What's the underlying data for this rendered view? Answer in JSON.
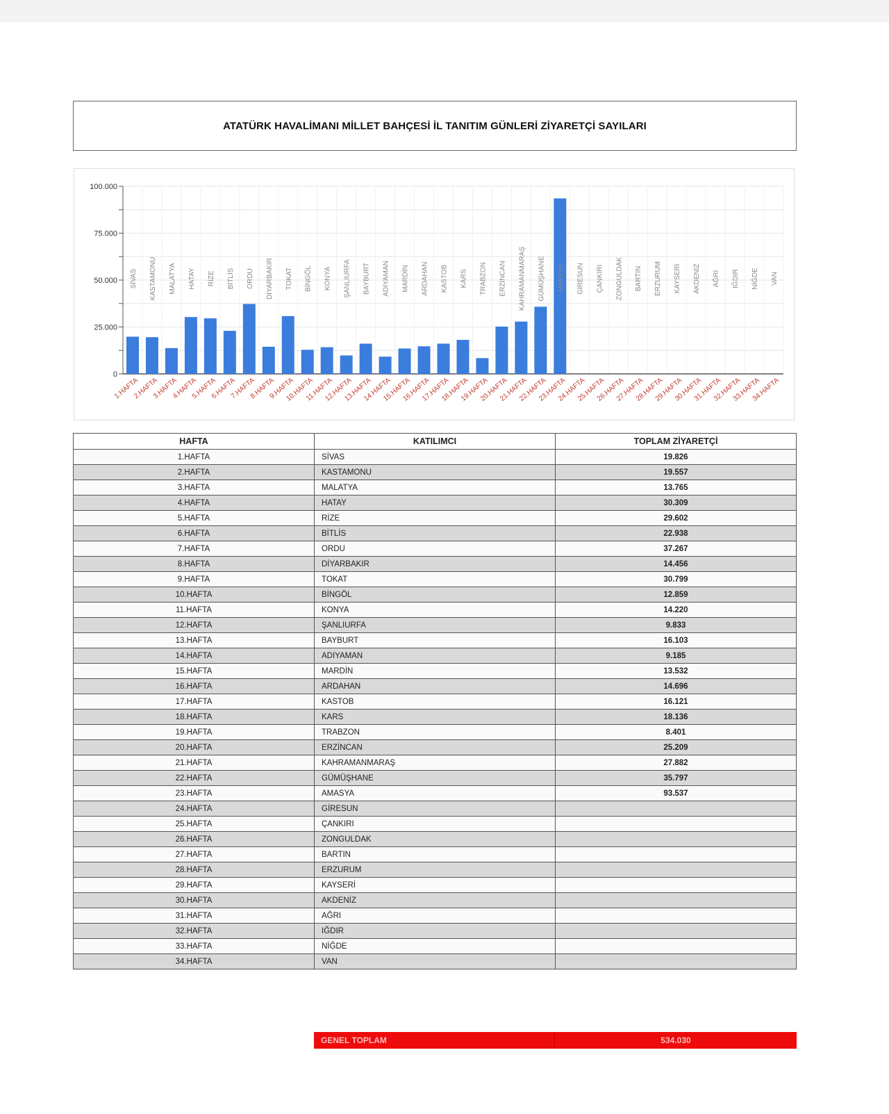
{
  "title": "ATATÜRK HAVALİMANI MİLLET BAHÇESİ İL TANITIM GÜNLERİ ZİYARETÇİ SAYILARI",
  "colors": {
    "bar": "#3b7ddd",
    "x_label": "#c0392b",
    "total_bg": "#ee0b0b"
  },
  "chart_data": {
    "type": "bar",
    "title": "",
    "xlabel": "",
    "ylabel": "",
    "ylim": [
      0,
      100000
    ],
    "yticks": [
      0,
      25000,
      50000,
      75000,
      100000
    ],
    "ytick_labels": [
      "0",
      "25.000",
      "50.000",
      "75.000",
      "100.000"
    ],
    "grid": true,
    "categories": [
      "1.HAFTA",
      "2.HAFTA",
      "3.HAFTA",
      "4.HAFTA",
      "5.HAFTA",
      "6.HAFTA",
      "7.HAFTA",
      "8.HAFTA",
      "9.HAFTA",
      "10.HAFTA",
      "11.HAFTA",
      "12.HAFTA",
      "13.HAFTA",
      "14.HAFTA",
      "15.HAFTA",
      "16.HAFTA",
      "17.HAFTA",
      "18.HAFTA",
      "19.HAFTA",
      "20.HAFTA",
      "21.HAFTA",
      "22.HAFTA",
      "23.HAFTA",
      "24.HAFTA",
      "25.HAFTA",
      "26.HAFTA",
      "27.HAFTA",
      "28.HAFTA",
      "29.HAFTA",
      "30.HAFTA",
      "31.HAFTA",
      "32.HAFTA",
      "33.HAFTA",
      "34.HAFTA"
    ],
    "bar_labels": [
      "SİVAS",
      "KASTAMONU",
      "MALATYA",
      "HATAY",
      "RİZE",
      "BİTLİS",
      "ORDU",
      "DİYARBAKIR",
      "TOKAT",
      "BİNGÖL",
      "KONYA",
      "ŞANLIURFA",
      "BAYBURT",
      "ADIYAMAN",
      "MARDİN",
      "ARDAHAN",
      "KASTOB",
      "KARS",
      "TRABZON",
      "ERZİNCAN",
      "KAHRAMANMARAŞ",
      "GÜMÜŞHANE",
      "AMASYA",
      "GİRESUN",
      "ÇANKIRI",
      "ZONGULDAK",
      "BARTIN",
      "ERZURUM",
      "KAYSERİ",
      "AKDENİZ",
      "AĞRI",
      "IĞDIR",
      "NİĞDE",
      "VAN"
    ],
    "values": [
      19826,
      19557,
      13765,
      30309,
      29602,
      22938,
      37267,
      14456,
      30799,
      12859,
      14220,
      9833,
      16103,
      9185,
      13532,
      14696,
      16121,
      18136,
      8401,
      25209,
      27882,
      35797,
      93537,
      null,
      null,
      null,
      null,
      null,
      null,
      null,
      null,
      null,
      null,
      null
    ]
  },
  "table": {
    "headers": [
      "HAFTA",
      "KATILIMCI",
      "TOPLAM ZİYARETÇİ"
    ],
    "rows": [
      [
        "1.HAFTA",
        "SİVAS",
        "19.826"
      ],
      [
        "2.HAFTA",
        "KASTAMONU",
        "19.557"
      ],
      [
        "3.HAFTA",
        "MALATYA",
        "13.765"
      ],
      [
        "4.HAFTA",
        "HATAY",
        "30.309"
      ],
      [
        "5.HAFTA",
        "RİZE",
        "29.602"
      ],
      [
        "6.HAFTA",
        "BİTLİS",
        "22.938"
      ],
      [
        "7.HAFTA",
        "ORDU",
        "37.267"
      ],
      [
        "8.HAFTA",
        "DİYARBAKIR",
        "14.456"
      ],
      [
        "9.HAFTA",
        "TOKAT",
        "30.799"
      ],
      [
        "10.HAFTA",
        "BİNGÖL",
        "12.859"
      ],
      [
        "11.HAFTA",
        "KONYA",
        "14.220"
      ],
      [
        "12.HAFTA",
        "ŞANLIURFA",
        "9.833"
      ],
      [
        "13.HAFTA",
        "BAYBURT",
        "16.103"
      ],
      [
        "14.HAFTA",
        "ADIYAMAN",
        "9.185"
      ],
      [
        "15.HAFTA",
        "MARDİN",
        "13.532"
      ],
      [
        "16.HAFTA",
        "ARDAHAN",
        "14.696"
      ],
      [
        "17.HAFTA",
        "KASTOB",
        "16.121"
      ],
      [
        "18.HAFTA",
        "KARS",
        "18.136"
      ],
      [
        "19.HAFTA",
        "TRABZON",
        "8.401"
      ],
      [
        "20.HAFTA",
        "ERZİNCAN",
        "25.209"
      ],
      [
        "21.HAFTA",
        "KAHRAMANMARAŞ",
        "27.882"
      ],
      [
        "22.HAFTA",
        "GÜMÜŞHANE",
        "35.797"
      ],
      [
        "23.HAFTA",
        "AMASYA",
        "93.537"
      ],
      [
        "24.HAFTA",
        "GİRESUN",
        ""
      ],
      [
        "25.HAFTA",
        "ÇANKIRI",
        ""
      ],
      [
        "26.HAFTA",
        "ZONGULDAK",
        ""
      ],
      [
        "27.HAFTA",
        "BARTIN",
        ""
      ],
      [
        "28.HAFTA",
        "ERZURUM",
        ""
      ],
      [
        "29.HAFTA",
        "KAYSERİ",
        ""
      ],
      [
        "30.HAFTA",
        "AKDENİZ",
        ""
      ],
      [
        "31.HAFTA",
        "AĞRI",
        ""
      ],
      [
        "32.HAFTA",
        "IĞDIR",
        ""
      ],
      [
        "33.HAFTA",
        "NİĞDE",
        ""
      ],
      [
        "34.HAFTA",
        "VAN",
        ""
      ]
    ],
    "total_label": "GENEL TOPLAM",
    "total_value": "534.030"
  }
}
